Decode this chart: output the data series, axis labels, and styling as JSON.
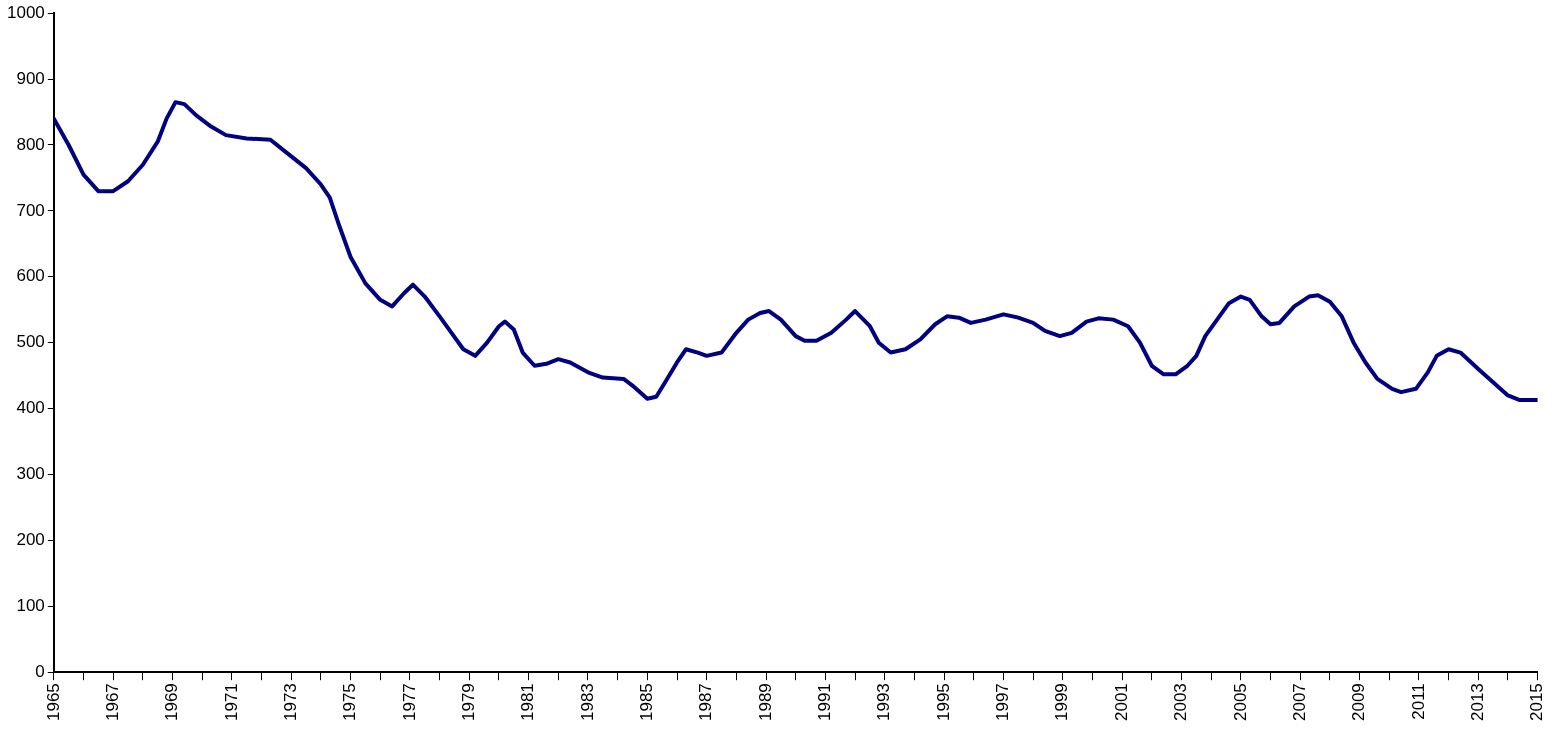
{
  "chart_data": {
    "type": "line",
    "grid": false,
    "legend": false,
    "marker": "none",
    "line_style": "solid",
    "xlim": [
      1965,
      2015
    ],
    "xticks": [
      1965,
      {
        "value": 1966,
        "label": null
      },
      1967,
      {
        "value": 1968,
        "label": null
      },
      1969,
      {
        "value": 1970,
        "label": null
      },
      1971,
      {
        "value": 1972,
        "label": null
      },
      1973,
      {
        "value": 1974,
        "label": null
      },
      1975,
      {
        "value": 1976,
        "label": null
      },
      1977,
      {
        "value": 1978,
        "label": null
      },
      1979,
      {
        "value": 1980,
        "label": null
      },
      1981,
      {
        "value": 1982,
        "label": null
      },
      1983,
      {
        "value": 1984,
        "label": null
      },
      1985,
      {
        "value": 1986,
        "label": null
      },
      1987,
      {
        "value": 1988,
        "label": null
      },
      1989,
      {
        "value": 1990,
        "label": null
      },
      1991,
      {
        "value": 1992,
        "label": null
      },
      1993,
      {
        "value": 1994,
        "label": null
      },
      1995,
      {
        "value": 1996,
        "label": null
      },
      1997,
      {
        "value": 1998,
        "label": null
      },
      1999,
      {
        "value": 2000,
        "label": null
      },
      2001,
      {
        "value": 2002,
        "label": null
      },
      2003,
      {
        "value": 2004,
        "label": null
      },
      2005,
      {
        "value": 2006,
        "label": null
      },
      2007,
      {
        "value": 2008,
        "label": null
      },
      2009,
      {
        "value": 2010,
        "label": null
      },
      2011,
      {
        "value": 2012,
        "label": null
      },
      2013,
      {
        "value": 2014,
        "label": null
      },
      2015
    ],
    "ylim": [
      0,
      1000
    ],
    "yticks": [
      0,
      100,
      200,
      300,
      400,
      500,
      600,
      700,
      800,
      900,
      1000
    ],
    "x": [
      1965,
      1965.5,
      1966,
      1966.5,
      1967,
      1967.5,
      1968,
      1968.5,
      1968.8,
      1969.1,
      1969.4,
      1969.8,
      1970.3,
      1970.8,
      1971.5,
      1972.3,
      1972.8,
      1973.5,
      1974,
      1974.3,
      1974.6,
      1975,
      1975.5,
      1976,
      1976.4,
      1976.8,
      1977.1,
      1977.5,
      1978,
      1978.4,
      1978.8,
      1979.2,
      1979.6,
      1980,
      1980.2,
      1980.5,
      1980.8,
      1981.2,
      1981.6,
      1982,
      1982.4,
      1983,
      1983.5,
      1984.2,
      1984.5,
      1985,
      1985.3,
      1985.6,
      1986,
      1986.3,
      1986.7,
      1987,
      1987.5,
      1988,
      1988.4,
      1988.8,
      1989.1,
      1989.5,
      1990,
      1990.3,
      1990.7,
      1991.2,
      1991.7,
      1992,
      1992.5,
      1992.8,
      1993.2,
      1993.7,
      1994.2,
      1994.7,
      1995.1,
      1995.5,
      1995.9,
      1996.4,
      1997,
      1997.5,
      1998,
      1998.4,
      1998.9,
      1999.3,
      1999.8,
      2000.2,
      2000.7,
      2001.2,
      2001.6,
      2002,
      2002.4,
      2002.8,
      2003.2,
      2003.5,
      2003.8,
      2004.2,
      2004.6,
      2005,
      2005.3,
      2005.7,
      2006,
      2006.3,
      2006.8,
      2007.3,
      2007.6,
      2008,
      2008.4,
      2008.8,
      2009.2,
      2009.6,
      2010.1,
      2010.4,
      2010.9,
      2011.3,
      2011.6,
      2012,
      2012.4,
      2013,
      2013.5,
      2014,
      2014.4,
      2015
    ],
    "series": [
      {
        "color": "#000080",
        "values": [
          840,
          800,
          755,
          730,
          730,
          745,
          770,
          805,
          840,
          865,
          862,
          845,
          828,
          815,
          810,
          808,
          790,
          765,
          740,
          720,
          680,
          630,
          590,
          565,
          555,
          575,
          588,
          570,
          540,
          515,
          490,
          480,
          500,
          525,
          532,
          520,
          485,
          465,
          468,
          475,
          470,
          455,
          447,
          445,
          435,
          415,
          418,
          440,
          470,
          490,
          485,
          480,
          485,
          515,
          535,
          545,
          548,
          535,
          510,
          503,
          503,
          515,
          535,
          548,
          525,
          500,
          485,
          490,
          505,
          528,
          540,
          538,
          530,
          535,
          543,
          538,
          530,
          518,
          510,
          515,
          532,
          537,
          535,
          525,
          500,
          465,
          452,
          452,
          465,
          480,
          510,
          535,
          560,
          570,
          565,
          540,
          528,
          530,
          555,
          570,
          572,
          562,
          540,
          500,
          470,
          445,
          430,
          425,
          430,
          455,
          480,
          490,
          485,
          460,
          440,
          420,
          413,
          413
        ]
      }
    ]
  }
}
